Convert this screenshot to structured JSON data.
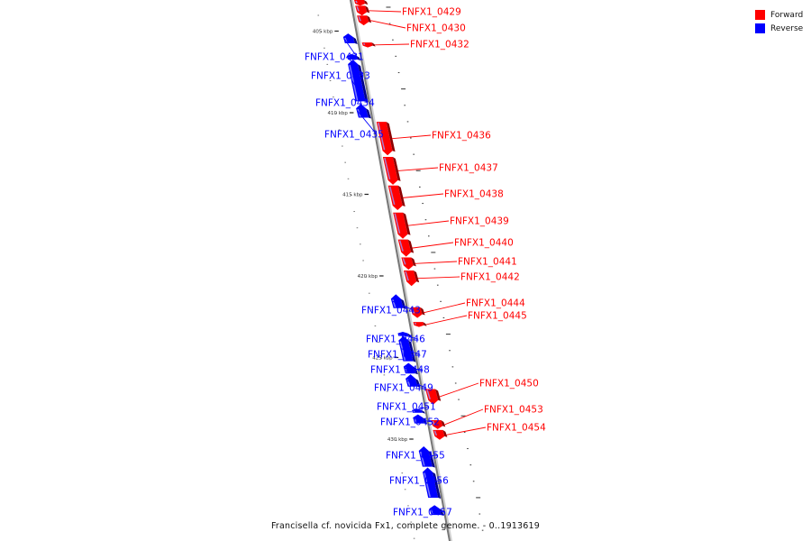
{
  "caption": "Francisella cf. novicida Fx1, complete genome. - 0..1913619",
  "legend": [
    {
      "label": "Forward",
      "color": "#ff0000"
    },
    {
      "label": "Reverse",
      "color": "#0000ff"
    }
  ],
  "colors": {
    "forward": "#ff0000",
    "reverse": "#0000ff",
    "backbone": "#888888"
  },
  "kbp_labels": [
    "405 kbp",
    "410 kbp",
    "415 kbp",
    "420 kbp",
    "425 kbp",
    "430 kbp"
  ],
  "genes": [
    {
      "id": "gene-0428",
      "label": "",
      "strand": "forward",
      "start": 403.7,
      "end": 404.05
    },
    {
      "id": "gene-0429",
      "label": "FNFX1_0429",
      "strand": "forward",
      "start": 404.05,
      "end": 404.65
    },
    {
      "id": "gene-0430",
      "label": "FNFX1_0430",
      "strand": "forward",
      "start": 404.65,
      "end": 405.25
    },
    {
      "id": "gene-0432",
      "label": "FNFX1_0432",
      "strand": "forward",
      "start": 406.3,
      "end": 406.6
    },
    {
      "id": "gene-0431",
      "label": "FNFX1_0431",
      "strand": "reverse",
      "start": 405.75,
      "end": 406.35
    },
    {
      "id": "gene-0433",
      "label": "FNFX1_0433",
      "strand": "reverse",
      "start": 407.0,
      "end": 407.35
    },
    {
      "id": "gene-0434",
      "label": "FNFX1_0434",
      "strand": "reverse",
      "start": 407.35,
      "end": 409.9
    },
    {
      "id": "gene-0435",
      "label": "FNFX1_0435",
      "strand": "reverse",
      "start": 410.05,
      "end": 410.9
    },
    {
      "id": "gene-0436",
      "label": "FNFX1_0436",
      "strand": "forward",
      "start": 411.15,
      "end": 413.2
    },
    {
      "id": "gene-0437",
      "label": "FNFX1_0437",
      "strand": "forward",
      "start": 413.3,
      "end": 415.0
    },
    {
      "id": "gene-0438",
      "label": "FNFX1_0438",
      "strand": "forward",
      "start": 415.05,
      "end": 416.55
    },
    {
      "id": "gene-0439",
      "label": "FNFX1_0439",
      "strand": "forward",
      "start": 416.7,
      "end": 418.3
    },
    {
      "id": "gene-0440",
      "label": "FNFX1_0440",
      "strand": "forward",
      "start": 418.35,
      "end": 419.4
    },
    {
      "id": "gene-0441",
      "label": "FNFX1_0441",
      "strand": "forward",
      "start": 419.45,
      "end": 420.2
    },
    {
      "id": "gene-0442",
      "label": "FNFX1_0442",
      "strand": "forward",
      "start": 420.25,
      "end": 421.2
    },
    {
      "id": "gene-0443",
      "label": "FNFX1_0443",
      "strand": "reverse",
      "start": 421.7,
      "end": 422.55
    },
    {
      "id": "gene-0444",
      "label": "FNFX1_0444",
      "strand": "forward",
      "start": 422.5,
      "end": 423.15
    },
    {
      "id": "gene-0445",
      "label": "FNFX1_0445",
      "strand": "forward",
      "start": 423.4,
      "end": 423.7
    },
    {
      "id": "gene-0446",
      "label": "FNFX1_0446",
      "strand": "reverse",
      "start": 424.0,
      "end": 424.25
    },
    {
      "id": "gene-0447",
      "label": "FNFX1_0447",
      "strand": "reverse",
      "start": 424.25,
      "end": 425.8
    },
    {
      "id": "gene-0448",
      "label": "FNFX1_0448",
      "strand": "reverse",
      "start": 425.9,
      "end": 426.55
    },
    {
      "id": "gene-0449",
      "label": "FNFX1_0449",
      "strand": "reverse",
      "start": 426.6,
      "end": 427.35
    },
    {
      "id": "gene-0450",
      "label": "FNFX1_0450",
      "strand": "forward",
      "start": 427.5,
      "end": 428.45
    },
    {
      "id": "gene-0451",
      "label": "FNFX1_0451",
      "strand": "reverse",
      "start": 428.7,
      "end": 428.95
    },
    {
      "id": "gene-0452",
      "label": "FNFX1_0452",
      "strand": "reverse",
      "start": 429.05,
      "end": 429.6
    },
    {
      "id": "gene-0453",
      "label": "FNFX1_0453",
      "strand": "forward",
      "start": 429.4,
      "end": 429.95
    },
    {
      "id": "gene-0454",
      "label": "FNFX1_0454",
      "strand": "forward",
      "start": 430.0,
      "end": 430.6
    },
    {
      "id": "gene-0455",
      "label": "FNFX1_0455",
      "strand": "reverse",
      "start": 431.0,
      "end": 432.25
    },
    {
      "id": "gene-0456",
      "label": "FNFX1_0456",
      "strand": "reverse",
      "start": 432.3,
      "end": 434.15
    },
    {
      "id": "gene-0457",
      "label": "FNFX1_0457",
      "strand": "reverse",
      "start": 434.6,
      "end": 435.2
    }
  ]
}
